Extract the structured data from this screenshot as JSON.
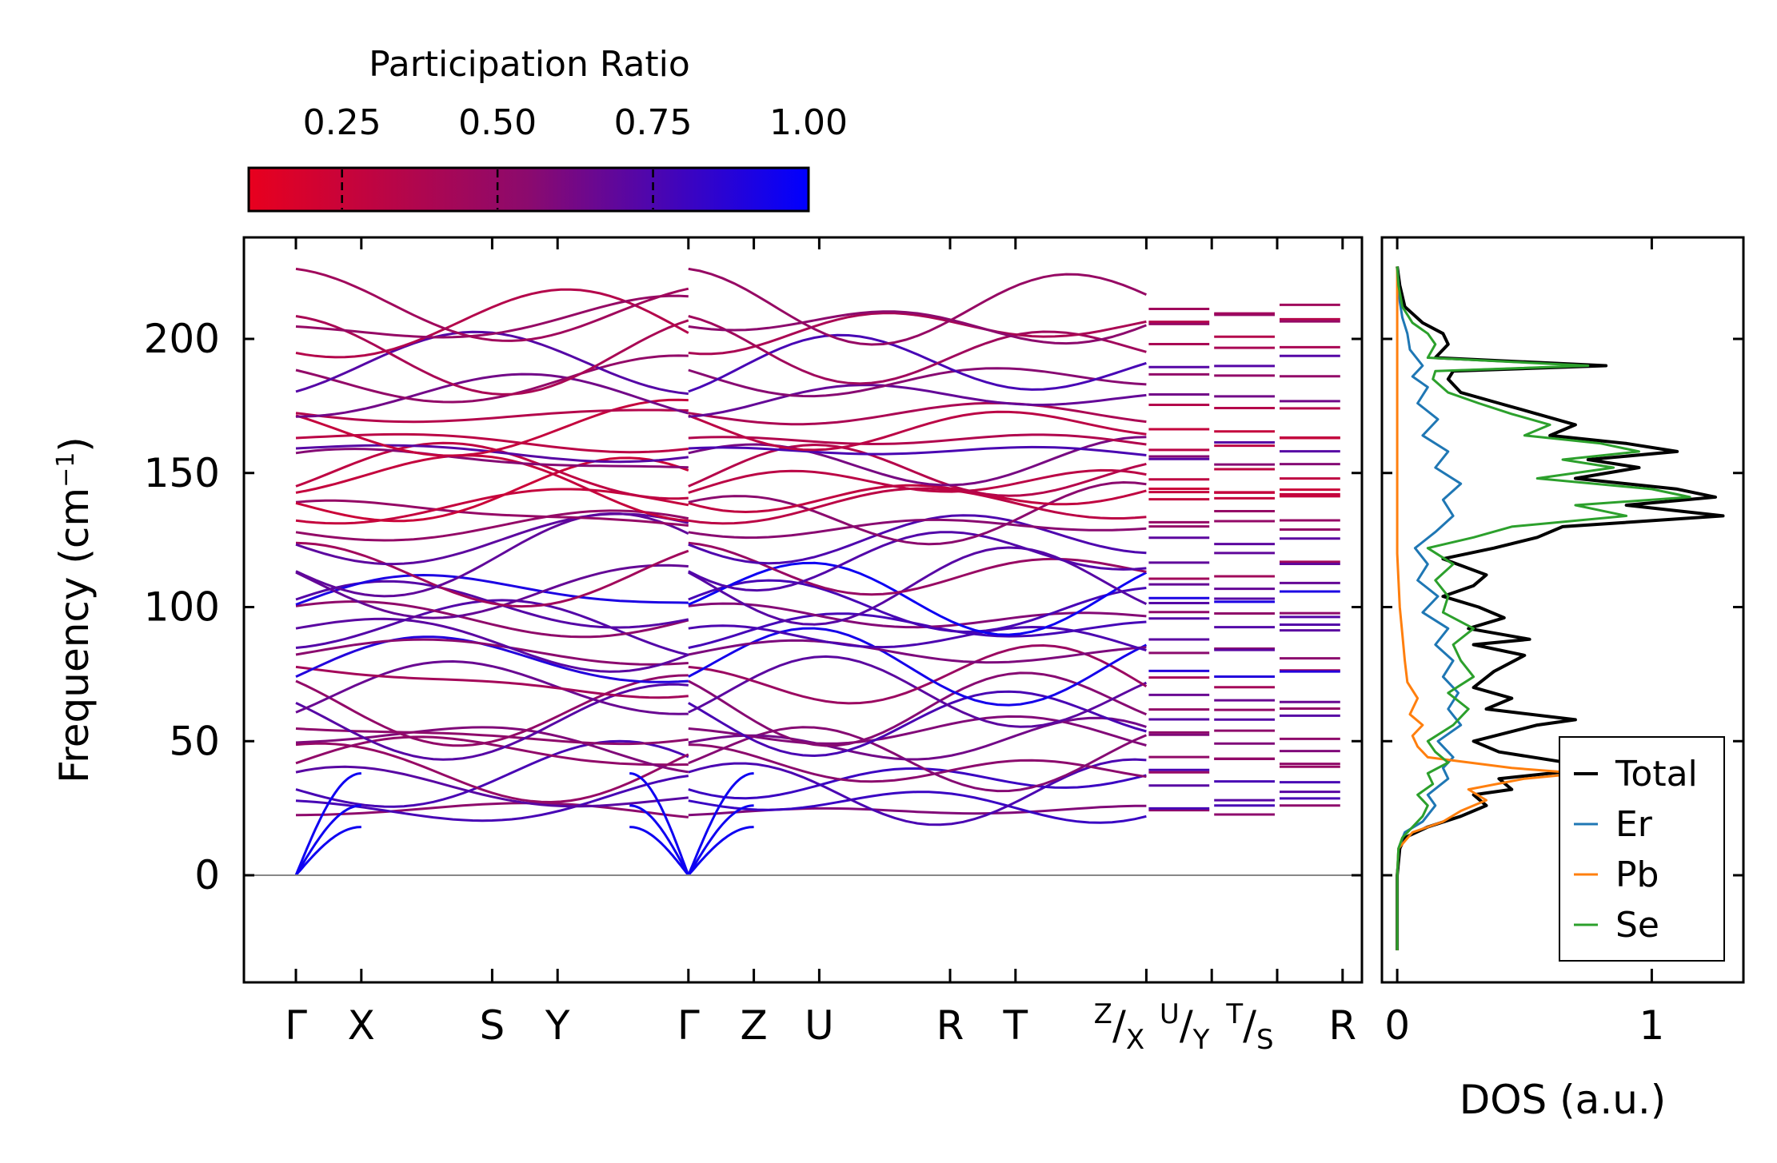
{
  "chart_data": [
    {
      "type": "line",
      "panel": "band-structure",
      "ylabel": "Frequency (cm⁻¹)",
      "ylim": [
        -40,
        240
      ],
      "yticks": [
        0,
        50,
        100,
        150,
        200
      ],
      "x_labels": [
        {
          "text": "Γ",
          "sub": "",
          "pos": 0
        },
        {
          "text": "X",
          "sub": "",
          "pos": 1
        },
        {
          "text": "S",
          "sub": "",
          "pos": 3
        },
        {
          "text": "Y",
          "sub": "",
          "pos": 4
        },
        {
          "text": "Γ",
          "sub": "",
          "pos": 6
        },
        {
          "text": "Z",
          "sub": "",
          "pos": 7
        },
        {
          "text": "U",
          "sub": "",
          "pos": 8
        },
        {
          "text": "R",
          "sub": "",
          "pos": 10
        },
        {
          "text": "T",
          "sub": "",
          "pos": 11
        },
        {
          "text": "Z",
          "sub": "X",
          "pos": 13
        },
        {
          "text": "U",
          "sub": "Y",
          "pos": 14
        },
        {
          "text": "T",
          "sub": "S",
          "pos": 15
        },
        {
          "text": "R",
          "sub": "",
          "pos": 16
        }
      ],
      "segments": [
        [
          0,
          6
        ],
        [
          6,
          13
        ],
        [
          13,
          14
        ],
        [
          14,
          15
        ],
        [
          15,
          16
        ]
      ],
      "acoustic_top_freqs": [
        18,
        26,
        38
      ],
      "optical_band_freqs": [
        24,
        27,
        31,
        36,
        40,
        44,
        49,
        53,
        58,
        63,
        68,
        73,
        78,
        83,
        88,
        92,
        96,
        100,
        104,
        108,
        113,
        119,
        126,
        130,
        134,
        138,
        142,
        146,
        150,
        154,
        158,
        162,
        167,
        172,
        178,
        185,
        190,
        195,
        204,
        206,
        212
      ],
      "colorbar": {
        "label": "Participation Ratio",
        "ticks": [
          "0.25",
          "0.50",
          "0.75",
          "1.00"
        ],
        "range": [
          0.1,
          1.0
        ],
        "color_low": "#e8001e",
        "color_mid": "#8b0a6e",
        "color_high": "#0000ff"
      }
    },
    {
      "type": "line",
      "panel": "dos",
      "xlabel": "DOS (a.u.)",
      "xlim": [
        -0.06,
        1.36
      ],
      "xticks": [
        "0",
        "1"
      ],
      "ylim": [
        -40,
        240
      ],
      "legend": "lower-right",
      "series": [
        {
          "name": "Total",
          "color": "#000000",
          "freq": [
            -28,
            0,
            10,
            14,
            18,
            22,
            26,
            30,
            32,
            36,
            40,
            46,
            50,
            56,
            58,
            62,
            66,
            70,
            76,
            82,
            86,
            88,
            92,
            96,
            100,
            104,
            108,
            112,
            118,
            122,
            126,
            130,
            134,
            138,
            141,
            144,
            148,
            152,
            155,
            158,
            161,
            164,
            168,
            172,
            176,
            180,
            185,
            188,
            190,
            193,
            198,
            202,
            206,
            212,
            220,
            227
          ],
          "values": [
            0,
            0,
            0.01,
            0.03,
            0.12,
            0.25,
            0.35,
            0.3,
            0.45,
            0.4,
            0.8,
            0.4,
            0.3,
            0.55,
            0.7,
            0.35,
            0.45,
            0.3,
            0.38,
            0.5,
            0.3,
            0.52,
            0.28,
            0.42,
            0.32,
            0.18,
            0.3,
            0.35,
            0.18,
            0.38,
            0.55,
            0.65,
            1.28,
            0.9,
            1.25,
            1.1,
            0.7,
            0.95,
            0.75,
            1.1,
            0.9,
            0.6,
            0.7,
            0.55,
            0.4,
            0.25,
            0.2,
            0.22,
            0.82,
            0.15,
            0.2,
            0.18,
            0.1,
            0.03,
            0.01,
            0
          ]
        },
        {
          "name": "Er",
          "color": "#1f77b4",
          "freq": [
            -28,
            0,
            10,
            16,
            20,
            26,
            30,
            36,
            40,
            44,
            50,
            56,
            62,
            68,
            74,
            80,
            86,
            92,
            98,
            104,
            110,
            116,
            122,
            128,
            134,
            140,
            146,
            152,
            158,
            164,
            170,
            176,
            182,
            186,
            190,
            196,
            202,
            208,
            214,
            227
          ],
          "values": [
            0,
            0,
            0.005,
            0.03,
            0.1,
            0.15,
            0.12,
            0.2,
            0.18,
            0.22,
            0.16,
            0.25,
            0.2,
            0.24,
            0.18,
            0.22,
            0.15,
            0.2,
            0.1,
            0.16,
            0.08,
            0.12,
            0.07,
            0.15,
            0.22,
            0.18,
            0.25,
            0.15,
            0.2,
            0.1,
            0.16,
            0.08,
            0.12,
            0.06,
            0.1,
            0.05,
            0.04,
            0.02,
            0.01,
            0
          ]
        },
        {
          "name": "Pb",
          "color": "#ff7f0e",
          "freq": [
            -28,
            0,
            10,
            16,
            20,
            24,
            28,
            32,
            36,
            38,
            40,
            44,
            48,
            52,
            56,
            60,
            66,
            72,
            80,
            90,
            100,
            110,
            120,
            227
          ],
          "values": [
            0,
            0,
            0.005,
            0.06,
            0.18,
            0.25,
            0.35,
            0.28,
            0.5,
            0.72,
            0.45,
            0.12,
            0.08,
            0.06,
            0.1,
            0.05,
            0.08,
            0.04,
            0.03,
            0.02,
            0.01,
            0.005,
            0,
            0
          ]
        },
        {
          "name": "Se",
          "color": "#2ca02c",
          "freq": [
            -28,
            0,
            10,
            14,
            18,
            22,
            26,
            30,
            34,
            38,
            42,
            46,
            50,
            56,
            62,
            68,
            74,
            80,
            86,
            92,
            98,
            104,
            110,
            116,
            122,
            126,
            130,
            134,
            138,
            141,
            144,
            148,
            152,
            155,
            158,
            161,
            164,
            168,
            172,
            176,
            180,
            185,
            188,
            190,
            193,
            198,
            202,
            206,
            212,
            220,
            227
          ],
          "values": [
            0,
            0,
            0.005,
            0.02,
            0.06,
            0.1,
            0.12,
            0.08,
            0.14,
            0.12,
            0.2,
            0.15,
            0.12,
            0.22,
            0.28,
            0.2,
            0.3,
            0.25,
            0.22,
            0.3,
            0.18,
            0.2,
            0.15,
            0.22,
            0.12,
            0.3,
            0.45,
            0.9,
            0.7,
            1.15,
            1.0,
            0.55,
            0.85,
            0.65,
            0.95,
            0.8,
            0.5,
            0.6,
            0.45,
            0.32,
            0.2,
            0.14,
            0.15,
            0.75,
            0.12,
            0.15,
            0.12,
            0.06,
            0.02,
            0.005,
            0
          ]
        }
      ]
    }
  ]
}
